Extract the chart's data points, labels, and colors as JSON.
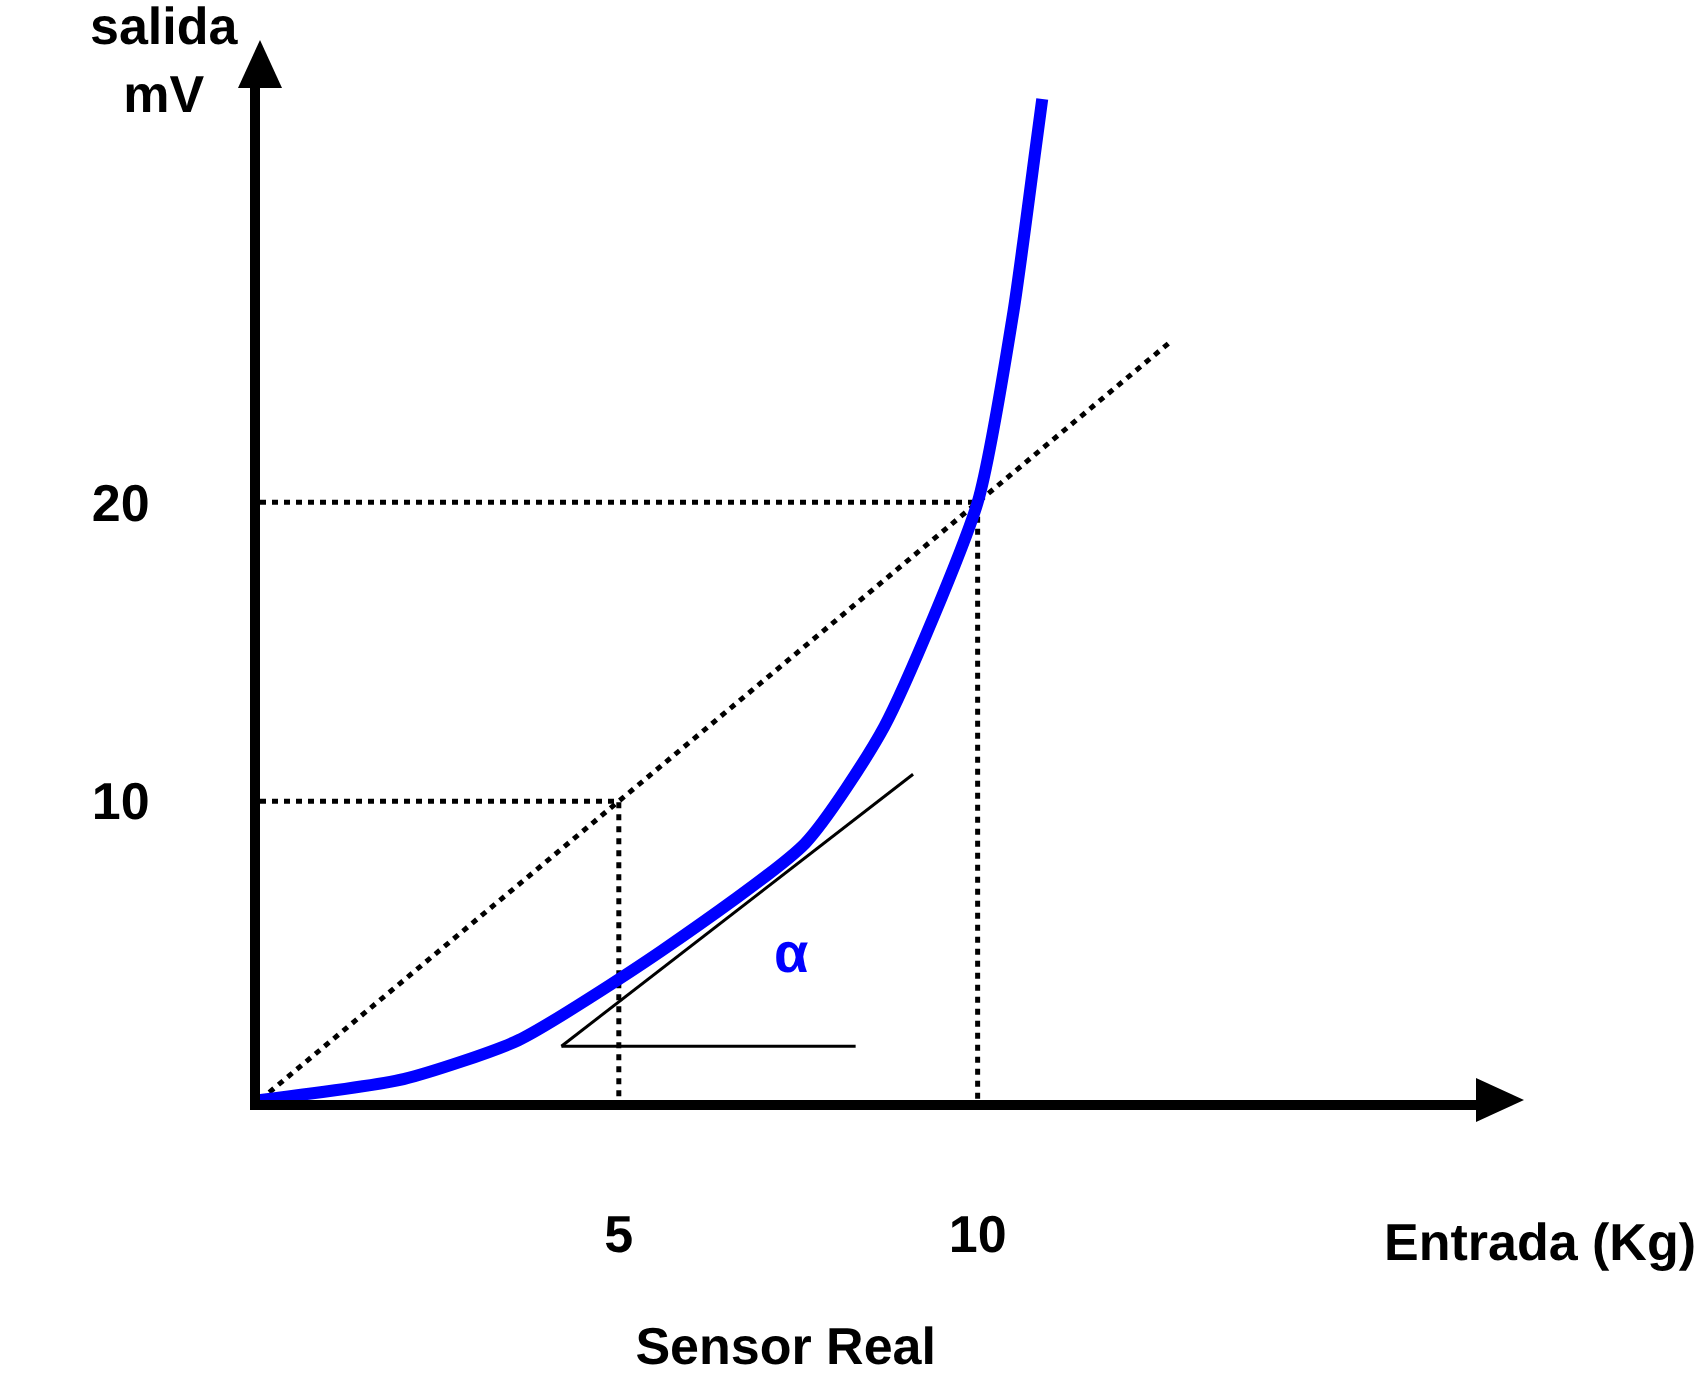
{
  "chart_data": {
    "type": "line",
    "title": "Sensor Real",
    "xlabel": "Entrada (Kg)",
    "ylabel": "salida\nmV",
    "xlim": [
      0,
      17
    ],
    "ylim": [
      0,
      34
    ],
    "xticks": [
      5,
      10
    ],
    "yticks": [
      10,
      20
    ],
    "grid": false,
    "marker": "none",
    "series": [
      {
        "color": "#000000",
        "line_style": "dotted",
        "x": [
          0,
          12.7
        ],
        "values": [
          0,
          25.4
        ]
      },
      {
        "color": "#000000",
        "line_style": "dotted",
        "x": [
          0,
          5,
          5
        ],
        "values": [
          10,
          10,
          0
        ]
      },
      {
        "color": "#000000",
        "line_style": "dotted",
        "x": [
          0,
          10,
          10
        ],
        "values": [
          20,
          20,
          0
        ]
      },
      {
        "color": "#000000",
        "line_style": "solid",
        "x": [
          4.2,
          9.1
        ],
        "values": [
          1.8,
          10.9
        ]
      },
      {
        "color": "#000000",
        "line_style": "solid",
        "x": [
          4.2,
          8.3
        ],
        "values": [
          1.8,
          1.8
        ]
      },
      {
        "color": "#0000ff",
        "line_style": "solid",
        "x": [
          0,
          2,
          3.6,
          5.6,
          7.6,
          8.7,
          10,
          10.5,
          10.8,
          10.9
        ],
        "values": [
          0,
          0.7,
          2,
          5,
          8.6,
          12.5,
          20,
          26.4,
          31.7,
          33.5
        ]
      }
    ],
    "annotations": [
      "α"
    ]
  }
}
